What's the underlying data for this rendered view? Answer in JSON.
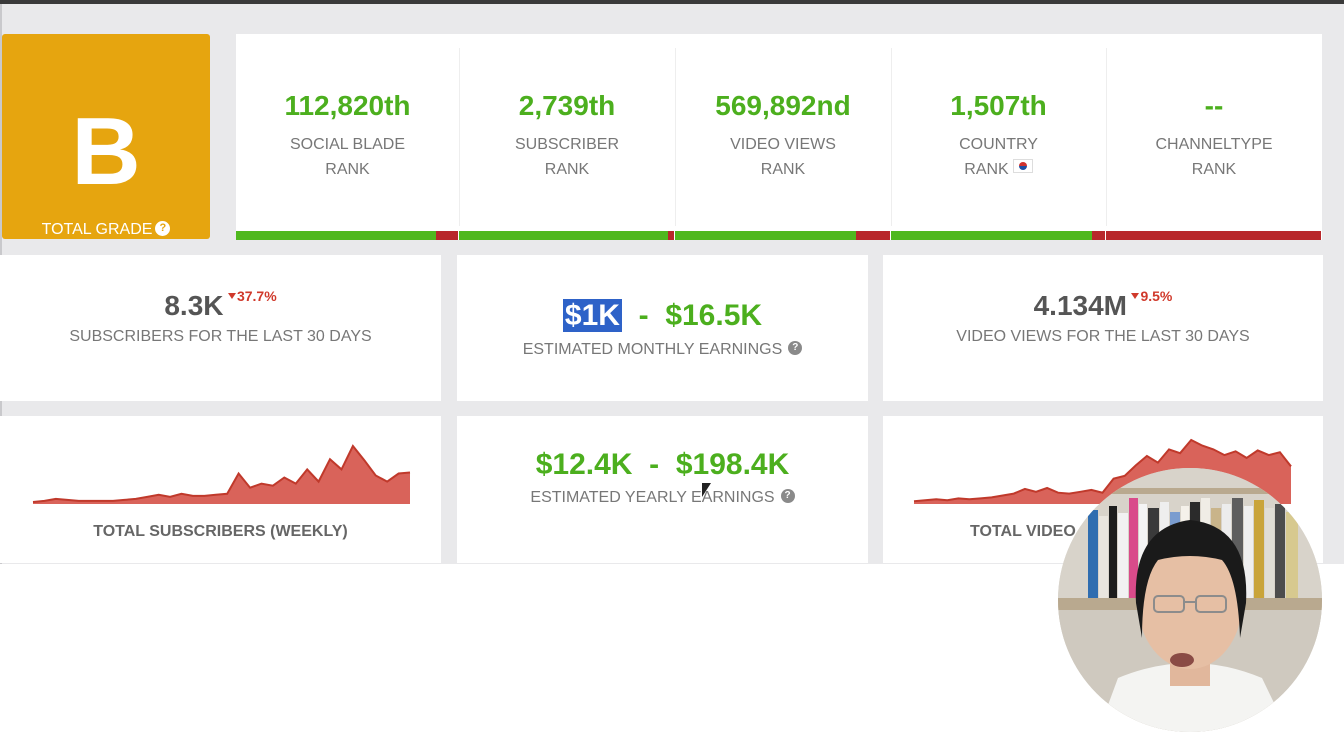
{
  "grade": {
    "letter": "B",
    "label": "TOTAL GRADE",
    "help_icon": "question-circle-icon",
    "color": "#e6a50f"
  },
  "ranks": [
    {
      "value": "112,820th",
      "label_line1": "SOCIAL BLADE",
      "label_line2": "RANK",
      "green_fraction": 0.9
    },
    {
      "value": "2,739th",
      "label_line1": "SUBSCRIBER",
      "label_line2": "RANK",
      "green_fraction": 0.97
    },
    {
      "value": "569,892nd",
      "label_line1": "VIDEO VIEWS",
      "label_line2": "RANK",
      "green_fraction": 0.84
    },
    {
      "value": "1,507th",
      "label_line1": "COUNTRY",
      "label_line2": "RANK",
      "green_fraction": 0.94,
      "flag_icon": "south-korea-flag-icon"
    },
    {
      "value": "--",
      "label_line1": "CHANNELTYPE",
      "label_line2": "RANK",
      "green_fraction": 0
    }
  ],
  "subscribers_30d": {
    "value": "8.3K",
    "change": "37.7%",
    "change_icon": "triangle-down-icon",
    "label": "SUBSCRIBERS FOR THE LAST 30 DAYS"
  },
  "monthly_earnings": {
    "low": "$1K",
    "sep": "-",
    "high": "$16.5K",
    "label": "ESTIMATED MONTHLY EARNINGS"
  },
  "views_30d": {
    "value": "4.134M",
    "change": "9.5%",
    "change_icon": "triangle-down-icon",
    "label": "VIDEO VIEWS FOR THE LAST 30 DAYS"
  },
  "yearly_earnings": {
    "low": "$12.4K",
    "sep": "-",
    "high": "$198.4K",
    "label": "ESTIMATED YEARLY EARNINGS"
  },
  "subs_chart": {
    "title": "TOTAL SUBSCRIBERS (WEEKLY)",
    "values": [
      2,
      3,
      5,
      4,
      3,
      3,
      3,
      3,
      4,
      5,
      7,
      9,
      7,
      10,
      8,
      8,
      9,
      10,
      30,
      16,
      20,
      18,
      26,
      20,
      34,
      22,
      44,
      34,
      57,
      43,
      28,
      22,
      30,
      31
    ]
  },
  "views_chart": {
    "title_visible": "TOTAL VIDEO",
    "values": [
      3,
      4,
      5,
      4,
      6,
      5,
      6,
      7,
      9,
      11,
      16,
      13,
      17,
      12,
      11,
      13,
      15,
      12,
      27,
      30,
      41,
      51,
      44,
      58,
      54,
      68,
      62,
      58,
      52,
      56,
      49,
      57,
      52,
      55,
      40
    ]
  },
  "colors": {
    "accent_green": "#4caf1e",
    "down_red": "#d0392b",
    "chart_fill": "#d9635a",
    "chart_stroke": "#c0392b",
    "selection": "#2e62c8"
  }
}
